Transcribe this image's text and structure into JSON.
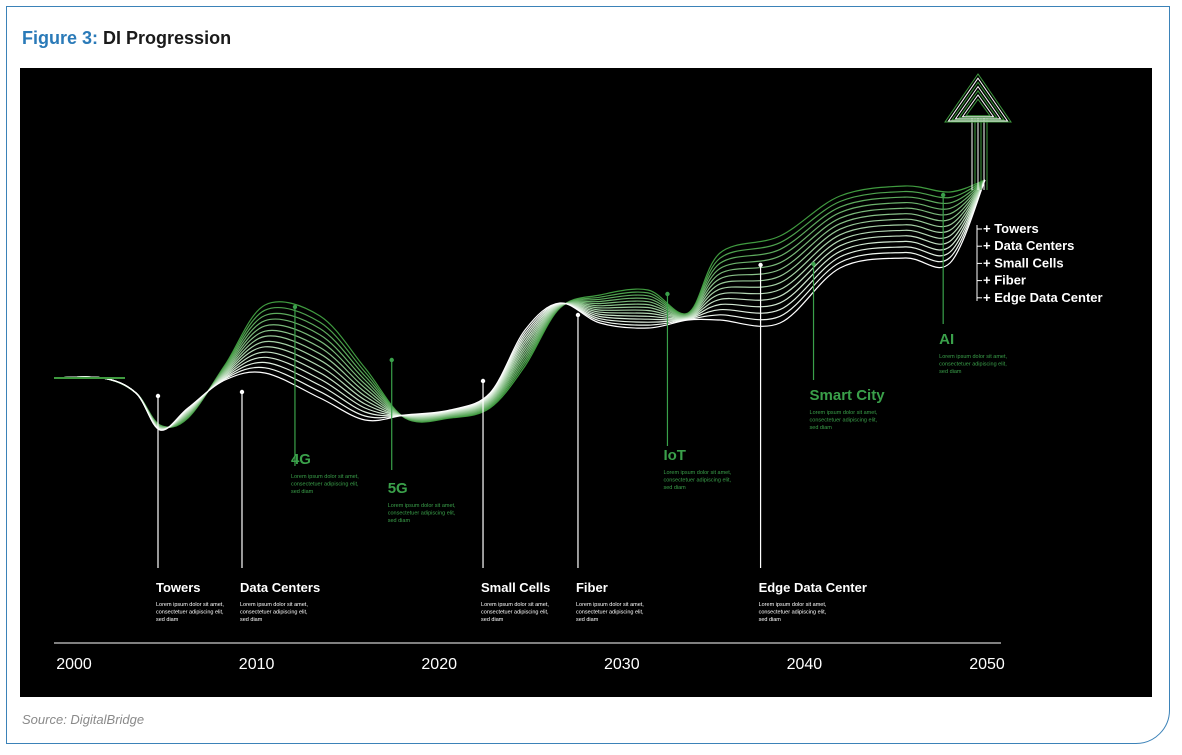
{
  "figure": {
    "label": "Figure 3:",
    "title": "DI Progression",
    "source": "Source: DigitalBridge"
  },
  "colors": {
    "background": "#000000",
    "white_line": "#ffffff",
    "green_line": "#3f9a3f",
    "green_text": "#3aa04a",
    "title_accent": "#2a7ab8"
  },
  "axis": {
    "ticks": [
      "2000",
      "2010",
      "2020",
      "2030",
      "2040",
      "2050"
    ]
  },
  "milestones_white": [
    {
      "name": "Towers",
      "year": 2004.6,
      "desc": [
        "Lorem ipsum dolor sit amet,",
        "consectetuer adipiscing elit,",
        "sed diam"
      ]
    },
    {
      "name": "Data Centers",
      "year": 2009.2,
      "desc": [
        "Lorem ipsum dolor sit amet,",
        "consectetuer adipiscing elit,",
        "sed diam"
      ]
    },
    {
      "name": "Small Cells",
      "year": 2022.4,
      "desc": [
        "Lorem ipsum dolor sit amet,",
        "consectetuer adipiscing elit,",
        "sed diam"
      ]
    },
    {
      "name": "Fiber",
      "year": 2027.6,
      "desc": [
        "Lorem ipsum dolor sit amet,",
        "consectetuer adipiscing elit,",
        "sed diam"
      ]
    },
    {
      "name": "Edge Data Center",
      "year": 2037.6,
      "desc": [
        "Lorem ipsum dolor sit amet,",
        "consectetuer adipiscing elit,",
        "sed diam"
      ]
    }
  ],
  "milestones_green": [
    {
      "name": "4G",
      "year": 2012.1,
      "desc": [
        "Lorem ipsum dolor sit amet,",
        "consectetuer adipiscing elit,",
        "sed diam"
      ]
    },
    {
      "name": "5G",
      "year": 2017.4,
      "desc": [
        "Lorem ipsum dolor sit amet,",
        "consectetuer adipiscing elit,",
        "sed diam"
      ]
    },
    {
      "name": "IoT",
      "year": 2032.5,
      "desc": [
        "Lorem ipsum dolor sit amet,",
        "consectetuer adipiscing elit,",
        "sed diam"
      ]
    },
    {
      "name": "Smart City",
      "year": 2040.5,
      "desc": [
        "Lorem ipsum dolor sit amet,",
        "consectetuer adipiscing elit,",
        "sed diam"
      ]
    },
    {
      "name": "AI",
      "year": 2047.6,
      "desc": [
        "Lorem ipsum dolor sit amet,",
        "consectetuer adipiscing elit,",
        "sed diam"
      ]
    }
  ],
  "summary_list": [
    "+ Towers",
    "+ Data Centers",
    "+ Small Cells",
    "+ Fiber",
    "+ Edge Data Center"
  ]
}
